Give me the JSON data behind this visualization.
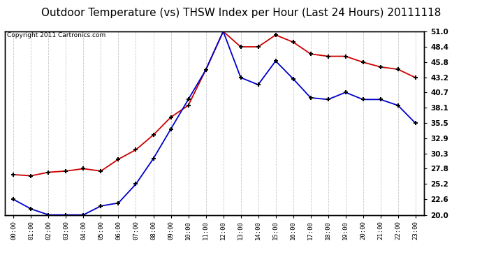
{
  "title": "Outdoor Temperature (vs) THSW Index per Hour (Last 24 Hours) 20111118",
  "copyright": "Copyright 2011 Cartronics.com",
  "hours": [
    "00:00",
    "01:00",
    "02:00",
    "03:00",
    "04:00",
    "05:00",
    "06:00",
    "07:00",
    "08:00",
    "09:00",
    "10:00",
    "11:00",
    "12:00",
    "13:00",
    "14:00",
    "15:00",
    "16:00",
    "17:00",
    "18:00",
    "19:00",
    "20:00",
    "21:00",
    "22:00",
    "23:00"
  ],
  "red_data": [
    26.8,
    26.6,
    27.2,
    27.4,
    27.8,
    27.4,
    29.4,
    31.0,
    33.5,
    36.5,
    38.5,
    44.5,
    51.0,
    48.4,
    48.4,
    50.4,
    49.2,
    47.2,
    46.8,
    46.8,
    45.8,
    45.0,
    44.6,
    43.2
  ],
  "blue_data": [
    22.6,
    21.0,
    20.0,
    20.0,
    20.0,
    21.5,
    22.0,
    25.2,
    29.5,
    34.5,
    39.5,
    44.5,
    51.0,
    43.2,
    42.0,
    46.0,
    43.0,
    39.8,
    39.5,
    40.7,
    39.5,
    39.5,
    38.5,
    35.5
  ],
  "ylim": [
    20.0,
    51.0
  ],
  "yticks": [
    20.0,
    22.6,
    25.2,
    27.8,
    30.3,
    32.9,
    35.5,
    38.1,
    40.7,
    43.2,
    45.8,
    48.4,
    51.0
  ],
  "background_color": "#ffffff",
  "plot_bg_color": "#ffffff",
  "grid_color": "#c8c8c8",
  "red_color": "#cc0000",
  "blue_color": "#0000cc",
  "title_fontsize": 11,
  "copyright_fontsize": 6.5
}
